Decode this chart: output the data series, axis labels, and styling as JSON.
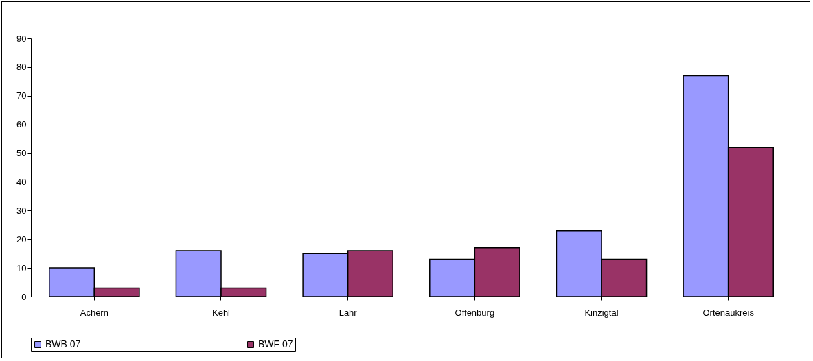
{
  "chart_data": {
    "type": "bar",
    "categories": [
      "Achern",
      "Kehl",
      "Lahr",
      "Offenburg",
      "Kinzigtal",
      "Ortenaukreis"
    ],
    "series": [
      {
        "name": "BWB 07",
        "color": "#9999ff",
        "values": [
          10,
          16,
          15,
          13,
          23,
          77
        ]
      },
      {
        "name": "BWF 07",
        "color": "#993366",
        "values": [
          3,
          3,
          16,
          17,
          13,
          52
        ]
      }
    ],
    "ylim": [
      0,
      90
    ],
    "yticks": [
      0,
      10,
      20,
      30,
      40,
      50,
      60,
      70,
      80,
      90
    ],
    "grid": false,
    "legend": "bottom"
  }
}
